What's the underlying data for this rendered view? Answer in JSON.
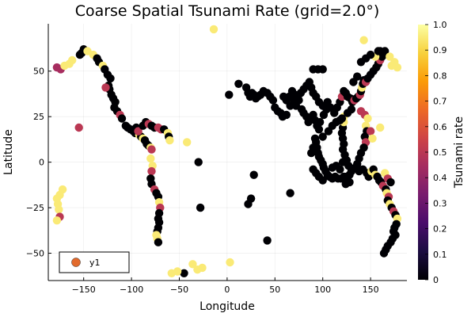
{
  "chart_data": {
    "type": "scatter",
    "title": "Coarse Spatial Tsunami Rate (grid=2.0°)",
    "xlabel": "Longitude",
    "ylabel": "Latitude",
    "xlim": [
      -187,
      188
    ],
    "ylim": [
      -65,
      76
    ],
    "xticks": [
      -150,
      -100,
      -50,
      0,
      50,
      100,
      150
    ],
    "yticks": [
      -50,
      -25,
      0,
      25,
      50
    ],
    "grid": true,
    "legend": {
      "position": "bottom-left",
      "entries": [
        "y1"
      ],
      "color": "#e26a2c"
    },
    "colorbar": {
      "label": "Tsunami rate",
      "range": [
        0,
        1
      ],
      "ticks": [
        0,
        0.1,
        0.2,
        0.3,
        0.4,
        0.5,
        0.6,
        0.7,
        0.8,
        0.9,
        1.0
      ],
      "tick_labels": [
        "0",
        "0.1",
        "0.2",
        "0.3",
        "0.4",
        "0.5",
        "0.6",
        "0.7",
        "0.8",
        "0.9",
        "1.0"
      ],
      "colormap": "inferno",
      "stops": [
        "#000004",
        "#1b0c41",
        "#4a0c6b",
        "#781c6d",
        "#a52c60",
        "#cf4446",
        "#ed6925",
        "#fb9b06",
        "#f7d13d",
        "#fcffa4"
      ]
    },
    "points": [
      [
        -174,
        51,
        0.45
      ],
      [
        -178,
        52,
        0.45
      ],
      [
        -162,
        56,
        0.95
      ],
      [
        -165,
        54,
        0.95
      ],
      [
        -170,
        53,
        0.95
      ],
      [
        -154,
        59,
        0.0
      ],
      [
        -152,
        60,
        0.0
      ],
      [
        -150,
        62,
        0.0
      ],
      [
        -146,
        61,
        0.95
      ],
      [
        -140,
        59,
        0.95
      ],
      [
        -136,
        57,
        0.0
      ],
      [
        -134,
        55,
        0.0
      ],
      [
        -130,
        53,
        0.95
      ],
      [
        -128,
        51,
        0.0
      ],
      [
        -125,
        48,
        0.0
      ],
      [
        -122,
        46,
        0.0
      ],
      [
        -124,
        42,
        0.0
      ],
      [
        -123,
        40,
        0.0
      ],
      [
        -121,
        37,
        0.0
      ],
      [
        -119,
        35,
        0.0
      ],
      [
        -117,
        33,
        0.0
      ],
      [
        -127,
        41,
        0.5
      ],
      [
        -118,
        30,
        0.0
      ],
      [
        -115,
        28,
        0.0
      ],
      [
        -112,
        26,
        0.5
      ],
      [
        -110,
        24,
        0.0
      ],
      [
        -106,
        20,
        0.0
      ],
      [
        -104,
        19,
        0.0
      ],
      [
        -101,
        18,
        0.0
      ],
      [
        -98,
        17,
        0.0
      ],
      [
        -96,
        16,
        0.0
      ],
      [
        -92,
        15,
        0.95
      ],
      [
        -90,
        14,
        0.0
      ],
      [
        -88,
        13,
        0.95
      ],
      [
        -86,
        12,
        0.0
      ],
      [
        -84,
        10,
        0.0
      ],
      [
        -82,
        9,
        0.0
      ],
      [
        -80,
        8,
        0.95
      ],
      [
        -79,
        7,
        0.5
      ],
      [
        -95,
        19,
        0.0
      ],
      [
        -93,
        17,
        0.5
      ],
      [
        -88,
        20,
        0.0
      ],
      [
        -85,
        22,
        0.0
      ],
      [
        -82,
        21,
        0.5
      ],
      [
        -79,
        20,
        0.0
      ],
      [
        -76,
        19,
        0.0
      ],
      [
        -72,
        19,
        0.5
      ],
      [
        -69,
        18,
        0.5
      ],
      [
        -66,
        18,
        0.0
      ],
      [
        -62,
        16,
        0.95
      ],
      [
        -61,
        14,
        0.0
      ],
      [
        -60,
        12,
        0.95
      ],
      [
        -80,
        2,
        0.95
      ],
      [
        -78,
        -2,
        0.95
      ],
      [
        -79,
        -5,
        0.5
      ],
      [
        -80,
        -9,
        0.0
      ],
      [
        -79,
        -12,
        0.0
      ],
      [
        -76,
        -15,
        0.5
      ],
      [
        -74,
        -17,
        0.0
      ],
      [
        -72,
        -19,
        0.0
      ],
      [
        -71,
        -22,
        0.95
      ],
      [
        -70,
        -25,
        0.5
      ],
      [
        -71,
        -28,
        0.0
      ],
      [
        -72,
        -31,
        0.0
      ],
      [
        -71,
        -33,
        0.0
      ],
      [
        -72,
        -36,
        0.0
      ],
      [
        -73,
        -38,
        0.0
      ],
      [
        -74,
        -40,
        0.95
      ],
      [
        -73,
        -42,
        0.95
      ],
      [
        -72,
        -44,
        0.0
      ],
      [
        -155,
        19,
        0.5
      ],
      [
        -172,
        -15,
        0.95
      ],
      [
        -175,
        -18,
        0.95
      ],
      [
        -178,
        -20,
        0.95
      ],
      [
        -177,
        -23,
        0.95
      ],
      [
        -176,
        -26,
        0.95
      ],
      [
        -175,
        -30,
        0.5
      ],
      [
        -178,
        -32,
        0.95
      ],
      [
        -14,
        73,
        0.95
      ],
      [
        -42,
        11,
        0.95
      ],
      [
        -28,
        -25,
        0.0
      ],
      [
        -30,
        0,
        0.0
      ],
      [
        -36,
        -56,
        0.95
      ],
      [
        -31,
        -59,
        0.95
      ],
      [
        -26,
        -58,
        0.95
      ],
      [
        -45,
        -61,
        0.0
      ],
      [
        3,
        -55,
        0.95
      ],
      [
        -52,
        -60,
        0.95
      ],
      [
        -58,
        -61,
        0.95
      ],
      [
        2,
        37,
        0.0
      ],
      [
        12,
        43,
        0.0
      ],
      [
        20,
        41,
        0.0
      ],
      [
        22,
        38,
        0.0
      ],
      [
        24,
        36,
        0.0
      ],
      [
        26,
        38,
        0.0
      ],
      [
        28,
        37,
        0.0
      ],
      [
        30,
        35,
        0.0
      ],
      [
        32,
        36,
        0.0
      ],
      [
        35,
        37,
        0.0
      ],
      [
        38,
        39,
        0.0
      ],
      [
        42,
        38,
        0.0
      ],
      [
        45,
        36,
        0.0
      ],
      [
        48,
        34,
        0.0
      ],
      [
        50,
        30,
        0.0
      ],
      [
        53,
        28,
        0.0
      ],
      [
        56,
        27,
        0.0
      ],
      [
        58,
        25,
        0.0
      ],
      [
        62,
        26,
        0.0
      ],
      [
        66,
        31,
        0.0
      ],
      [
        70,
        34,
        0.0
      ],
      [
        72,
        31,
        0.0
      ],
      [
        75,
        34,
        0.0
      ],
      [
        78,
        29,
        0.0
      ],
      [
        80,
        27,
        0.0
      ],
      [
        83,
        25,
        0.0
      ],
      [
        85,
        22,
        0.0
      ],
      [
        88,
        24,
        0.0
      ],
      [
        90,
        26,
        0.0
      ],
      [
        92,
        23,
        0.0
      ],
      [
        94,
        20,
        0.0
      ],
      [
        96,
        18,
        0.0
      ],
      [
        92,
        13,
        0.0
      ],
      [
        93,
        11,
        0.0
      ],
      [
        94,
        8,
        0.0
      ],
      [
        95,
        5,
        0.0
      ],
      [
        96,
        3,
        0.0
      ],
      [
        98,
        1,
        0.0
      ],
      [
        100,
        -1,
        0.0
      ],
      [
        101,
        -3,
        0.0
      ],
      [
        103,
        -5,
        0.0
      ],
      [
        105,
        -7,
        0.0
      ],
      [
        107,
        -8,
        0.0
      ],
      [
        110,
        -9,
        0.0
      ],
      [
        113,
        -8,
        0.0
      ],
      [
        116,
        -9,
        0.0
      ],
      [
        119,
        -9,
        0.0
      ],
      [
        122,
        -8,
        0.0
      ],
      [
        125,
        -8,
        0.0
      ],
      [
        128,
        -7,
        0.0
      ],
      [
        130,
        -5,
        0.0
      ],
      [
        127,
        -2,
        0.0
      ],
      [
        125,
        1,
        0.0
      ],
      [
        123,
        4,
        0.0
      ],
      [
        121,
        7,
        0.0
      ],
      [
        122,
        10,
        0.0
      ],
      [
        121,
        13,
        0.0
      ],
      [
        120,
        16,
        0.0
      ],
      [
        121,
        19,
        0.0
      ],
      [
        122,
        22,
        0.95
      ],
      [
        122,
        25,
        0.95
      ],
      [
        120,
        24,
        0.0
      ],
      [
        118,
        23,
        0.0
      ],
      [
        114,
        22,
        0.0
      ],
      [
        110,
        20,
        0.0
      ],
      [
        106,
        17,
        0.0
      ],
      [
        100,
        14,
        0.0
      ],
      [
        97,
        22,
        0.0
      ],
      [
        101,
        26,
        0.0
      ],
      [
        104,
        29,
        0.0
      ],
      [
        100,
        31,
        0.0
      ],
      [
        96,
        33,
        0.0
      ],
      [
        93,
        36,
        0.0
      ],
      [
        90,
        38,
        0.0
      ],
      [
        88,
        41,
        0.0
      ],
      [
        86,
        44,
        0.0
      ],
      [
        83,
        42,
        0.0
      ],
      [
        80,
        40,
        0.0
      ],
      [
        77,
        38,
        0.0
      ],
      [
        74,
        36,
        0.0
      ],
      [
        71,
        37,
        0.0
      ],
      [
        68,
        39,
        0.0
      ],
      [
        65,
        36,
        0.0
      ],
      [
        62,
        34,
        0.0
      ],
      [
        59,
        36,
        0.0
      ],
      [
        90,
        51,
        0.0
      ],
      [
        95,
        51,
        0.0
      ],
      [
        100,
        51,
        0.0
      ],
      [
        105,
        33,
        0.0
      ],
      [
        108,
        30,
        0.0
      ],
      [
        112,
        27,
        0.0
      ],
      [
        115,
        30,
        0.0
      ],
      [
        118,
        33,
        0.0
      ],
      [
        120,
        36,
        0.5
      ],
      [
        122,
        39,
        0.0
      ],
      [
        124,
        38,
        0.0
      ],
      [
        126,
        36,
        0.0
      ],
      [
        129,
        35,
        0.0
      ],
      [
        131,
        33,
        0.0
      ],
      [
        133,
        34,
        0.5
      ],
      [
        135,
        35,
        0.0
      ],
      [
        137,
        36,
        0.0
      ],
      [
        139,
        37,
        0.5
      ],
      [
        140,
        39,
        0.0
      ],
      [
        141,
        41,
        0.95
      ],
      [
        142,
        43,
        0.0
      ],
      [
        143,
        45,
        0.0
      ],
      [
        145,
        44,
        0.5
      ],
      [
        147,
        46,
        0.0
      ],
      [
        150,
        48,
        0.0
      ],
      [
        153,
        50,
        0.0
      ],
      [
        156,
        52,
        0.0
      ],
      [
        158,
        54,
        0.0
      ],
      [
        160,
        56,
        0.5
      ],
      [
        162,
        58,
        0.0
      ],
      [
        164,
        60,
        0.0
      ],
      [
        160,
        61,
        0.0
      ],
      [
        155,
        58,
        0.95
      ],
      [
        150,
        59,
        0.0
      ],
      [
        145,
        57,
        0.0
      ],
      [
        140,
        55,
        0.0
      ],
      [
        143,
        67,
        0.95
      ],
      [
        158,
        61,
        0.0
      ],
      [
        165,
        61,
        0.0
      ],
      [
        170,
        58,
        0.95
      ],
      [
        175,
        55,
        0.95
      ],
      [
        178,
        52,
        0.95
      ],
      [
        172,
        53,
        0.95
      ],
      [
        145,
        20,
        0.95
      ],
      [
        146,
        17,
        0.0
      ],
      [
        144,
        14,
        0.0
      ],
      [
        145,
        11,
        0.5
      ],
      [
        143,
        8,
        0.0
      ],
      [
        140,
        5,
        0.0
      ],
      [
        138,
        2,
        0.0
      ],
      [
        136,
        -1,
        0.0
      ],
      [
        134,
        -3,
        0.0
      ],
      [
        138,
        -5,
        0.0
      ],
      [
        142,
        -4,
        0.0
      ],
      [
        146,
        -6,
        0.0
      ],
      [
        148,
        -8,
        0.0
      ],
      [
        151,
        -5,
        0.95
      ],
      [
        153,
        -4,
        0.0
      ],
      [
        155,
        -7,
        0.95
      ],
      [
        157,
        -8,
        0.0
      ],
      [
        159,
        -10,
        0.0
      ],
      [
        161,
        -11,
        0.0
      ],
      [
        163,
        -13,
        0.5
      ],
      [
        166,
        -15,
        0.0
      ],
      [
        167,
        -17,
        0.95
      ],
      [
        169,
        -19,
        0.5
      ],
      [
        168,
        -21,
        0.0
      ],
      [
        170,
        -23,
        0.95
      ],
      [
        172,
        -25,
        0.0
      ],
      [
        174,
        -27,
        0.5
      ],
      [
        176,
        -29,
        0.0
      ],
      [
        178,
        -31,
        0.95
      ],
      [
        177,
        -34,
        0.0
      ],
      [
        175,
        -36,
        0.0
      ],
      [
        174,
        -38,
        0.0
      ],
      [
        176,
        -40,
        0.0
      ],
      [
        173,
        -42,
        0.0
      ],
      [
        171,
        -44,
        0.0
      ],
      [
        168,
        -46,
        0.0
      ],
      [
        166,
        -48,
        0.0
      ],
      [
        164,
        -50,
        0.0
      ],
      [
        100,
        -10,
        0.0
      ],
      [
        96,
        -8,
        0.0
      ],
      [
        93,
        -6,
        0.0
      ],
      [
        90,
        -4,
        0.0
      ],
      [
        88,
        5,
        0.0
      ],
      [
        90,
        8,
        0.0
      ],
      [
        66,
        -17,
        0.0
      ],
      [
        42,
        -43,
        0.0
      ],
      [
        28,
        -7,
        0.0
      ],
      [
        25,
        -20,
        0.0
      ],
      [
        22,
        -23,
        0.0
      ],
      [
        140,
        28,
        0.5
      ],
      [
        144,
        26,
        0.5
      ],
      [
        147,
        24,
        0.95
      ],
      [
        130,
        29,
        0.0
      ],
      [
        126,
        27,
        0.0
      ],
      [
        132,
        44,
        0.0
      ],
      [
        136,
        47,
        0.0
      ],
      [
        150,
        17,
        0.5
      ],
      [
        152,
        13,
        0.95
      ],
      [
        160,
        19,
        0.95
      ],
      [
        165,
        -6,
        0.95
      ],
      [
        168,
        -9,
        0.5
      ],
      [
        171,
        -11,
        0.0
      ],
      [
        110,
        -3,
        0.0
      ],
      [
        114,
        -2,
        0.0
      ],
      [
        118,
        -4,
        0.0
      ],
      [
        121,
        0,
        0.0
      ],
      [
        124,
        -12,
        0.0
      ],
      [
        128,
        -11,
        0.0
      ]
    ]
  }
}
